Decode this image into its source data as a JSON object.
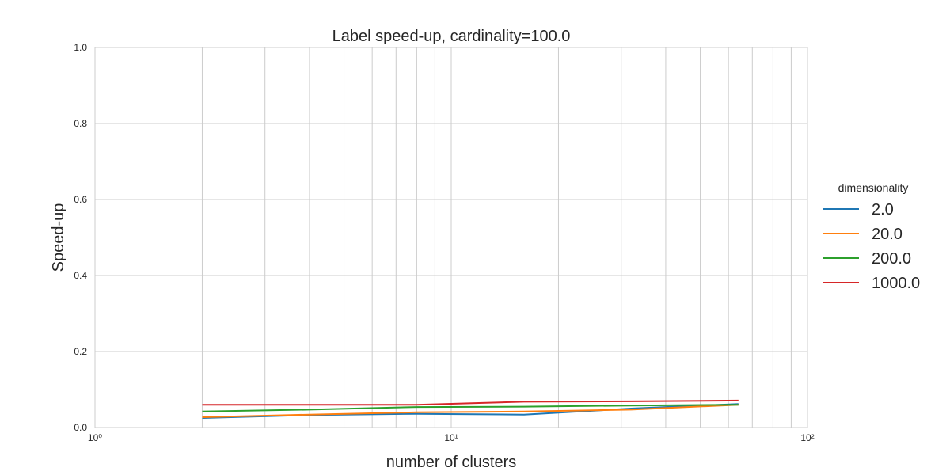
{
  "chart_data": {
    "type": "line",
    "title": "Label speed-up, cardinality=100.0",
    "xlabel": "number of clusters",
    "ylabel": "Speed-up",
    "xscale": "log",
    "xlim": [
      1,
      100
    ],
    "ylim": [
      0.0,
      1.0
    ],
    "grid": true,
    "legend_placement": "right, outside plot",
    "legend_title": "dimensionality",
    "x": [
      2,
      4,
      8,
      16,
      32,
      64
    ],
    "x_ticks": [
      {
        "value": 1,
        "label": "10⁰"
      },
      {
        "value": 10,
        "label": "10¹"
      },
      {
        "value": 100,
        "label": "10²"
      }
    ],
    "y_ticks": [
      {
        "value": 0.0,
        "label": "0.0"
      },
      {
        "value": 0.2,
        "label": "0.2"
      },
      {
        "value": 0.4,
        "label": "0.4"
      },
      {
        "value": 0.6,
        "label": "0.6"
      },
      {
        "value": 0.8,
        "label": "0.8"
      },
      {
        "value": 1.0,
        "label": "1.0"
      }
    ],
    "series": [
      {
        "name": "2.0",
        "color": "#1f77b4",
        "values": [
          0.025,
          0.033,
          0.036,
          0.034,
          0.05,
          0.062
        ]
      },
      {
        "name": "20.0",
        "color": "#ff7f0e",
        "values": [
          0.027,
          0.034,
          0.04,
          0.042,
          0.047,
          0.06
        ]
      },
      {
        "name": "200.0",
        "color": "#2ca02c",
        "values": [
          0.042,
          0.047,
          0.054,
          0.055,
          0.058,
          0.06
        ]
      },
      {
        "name": "1000.0",
        "color": "#d62728",
        "values": [
          0.06,
          0.06,
          0.06,
          0.068,
          0.069,
          0.071
        ]
      }
    ]
  }
}
